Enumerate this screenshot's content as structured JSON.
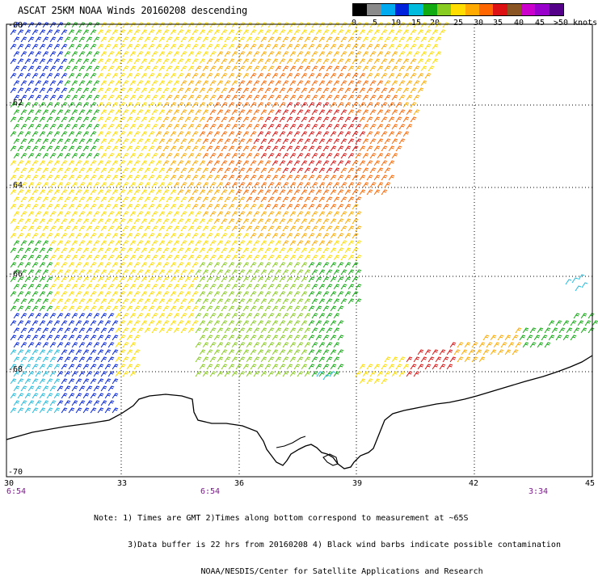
{
  "title": "ASCAT 25KM NOAA Winds 20160208 descending",
  "legend": {
    "colors": [
      "#000000",
      "#8a8a8a",
      "#00aaee",
      "#0022dd",
      "#00bbdd",
      "#11aa11",
      "#88cc22",
      "#ffdd00",
      "#ffaa00",
      "#ff6600",
      "#dd1111",
      "#8a5522",
      "#cc00cc",
      "#9900cc",
      "#550088"
    ],
    "labels": [
      "0",
      "5",
      "10",
      "15",
      "20",
      "25",
      "30",
      "35",
      "40",
      "45",
      ">50 knots"
    ]
  },
  "axes": {
    "lat_labels": [
      "-60",
      "-62",
      "-64",
      "-66",
      "-68",
      "-70"
    ],
    "lon_labels": [
      "30",
      "33",
      "36",
      "39",
      "42",
      "45"
    ],
    "times": [
      "6:54",
      "6:54",
      "3:34"
    ]
  },
  "notes": [
    "Note: 1) Times are GMT 2)Times along bottom correspond to measurement at ~65S",
    "       3)Data buffer is 22 hrs from 20160208 4) Black wind barbs indicate possible contamination",
    "                      NOAA/NESDIS/Center for Satellite Applications and Research"
  ]
}
